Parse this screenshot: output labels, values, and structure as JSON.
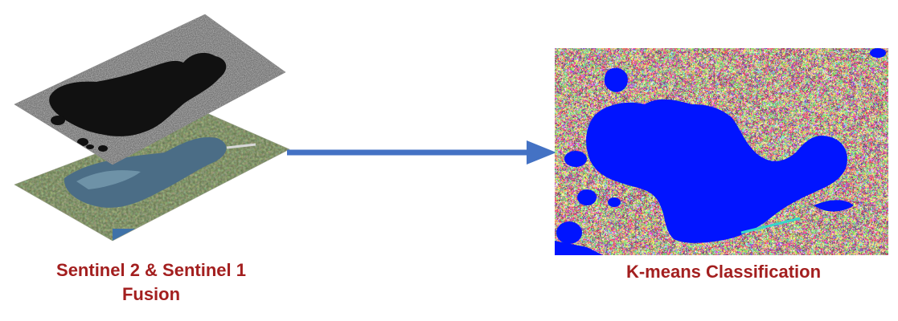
{
  "fusion": {
    "caption_line1": "Sentinel 2 & Sentinel 1",
    "caption_line2": "Fusion",
    "layer_top": "sentinel-1-radar-layer",
    "layer_bottom": "sentinel-2-optical-layer"
  },
  "classification": {
    "caption": "K-means Classification",
    "colors": {
      "water": "#0014ff",
      "class_red": "#e8141b",
      "class_cyan": "#38d6c8",
      "class_green": "#2e9a4a",
      "class_yellow": "#d7e41e"
    }
  },
  "arrow": {
    "color": "#4472c4",
    "icon": "right-arrow-icon"
  },
  "caption_color": "#a31f1f"
}
